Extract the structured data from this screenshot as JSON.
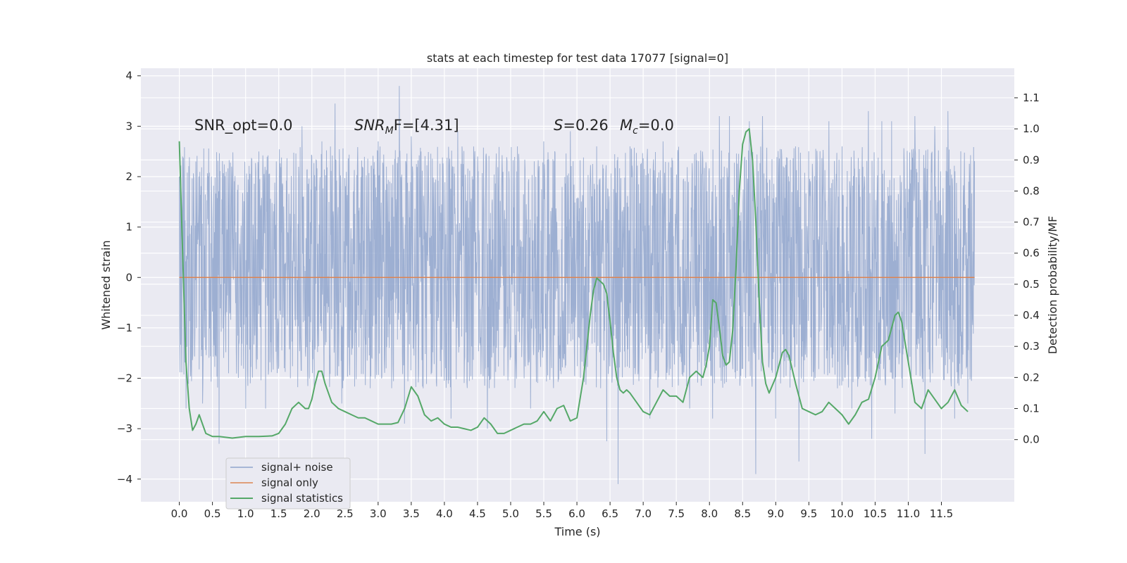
{
  "chart_data": {
    "type": "line",
    "title": "stats at each timestep for test data 17077 [signal=0]",
    "xlabel": "Time (s)",
    "ylabel_left": "Whitened strain",
    "ylabel_right": "Detection probability/MF",
    "xlim": [
      -0.58,
      12.6
    ],
    "ylim_left": [
      -4.45,
      4.15
    ],
    "ylim_right": [
      -0.2,
      1.195
    ],
    "x_ticks": [
      0.0,
      0.5,
      1.0,
      1.5,
      2.0,
      2.5,
      3.0,
      3.5,
      4.0,
      4.5,
      5.0,
      5.5,
      6.0,
      6.5,
      7.0,
      7.5,
      8.0,
      8.5,
      9.0,
      9.5,
      10.0,
      10.5,
      11.0,
      11.5
    ],
    "x_tick_labels": [
      "0.0",
      "0.5",
      "1.0",
      "1.5",
      "2.0",
      "2.5",
      "3.0",
      "3.5",
      "4.0",
      "4.5",
      "5.0",
      "5.5",
      "6.0",
      "6.5",
      "7.0",
      "7.5",
      "8.0",
      "8.5",
      "9.0",
      "9.5",
      "10.0",
      "10.5",
      "11.0",
      "11.5"
    ],
    "y_left_ticks": [
      -4,
      -3,
      -2,
      -1,
      0,
      1,
      2,
      3,
      4
    ],
    "y_left_tick_labels": [
      "−4",
      "−3",
      "−2",
      "−1",
      "0",
      "1",
      "2",
      "3",
      "4"
    ],
    "y_right_ticks": [
      0.0,
      0.1,
      0.2,
      0.3,
      0.4,
      0.5,
      0.6,
      0.7,
      0.8,
      0.9,
      1.0,
      1.1
    ],
    "y_right_tick_labels": [
      "0.0",
      "0.1",
      "0.2",
      "0.3",
      "0.4",
      "0.5",
      "0.6",
      "0.7",
      "0.8",
      "0.9",
      "1.0",
      "1.1"
    ],
    "grid": true,
    "legend_position": "lower-left",
    "legend": [
      "signal+ noise",
      "signal only",
      "signal statistics"
    ],
    "annotations": {
      "snr_opt": "SNR_opt=0.0",
      "snr_mf_base": "SNR",
      "snr_mf_sub": "M",
      "snr_mf_tail": "F=[4.31]",
      "s_symbol": "S",
      "s_value": "=0.26",
      "mc_base": "M",
      "mc_sub": "c",
      "mc_value": "=0.0"
    },
    "series": [
      {
        "name": "signal+ noise",
        "axis": "left",
        "color": "#8fa4cc",
        "x_range": [
          0.0,
          12.0
        ],
        "band_typical": [
          -1.3,
          1.7
        ],
        "peaks_up": [
          [
            0.05,
            2.4
          ],
          [
            0.25,
            2.3
          ],
          [
            0.6,
            2.6
          ],
          [
            1.2,
            2.5
          ],
          [
            1.85,
            3.0
          ],
          [
            2.0,
            2.4
          ],
          [
            2.15,
            2.7
          ],
          [
            2.35,
            3.45
          ],
          [
            2.45,
            2.6
          ],
          [
            3.0,
            2.7
          ],
          [
            3.32,
            3.8
          ],
          [
            3.5,
            2.8
          ],
          [
            4.2,
            2.9
          ],
          [
            4.5,
            2.4
          ],
          [
            5.1,
            2.6
          ],
          [
            5.5,
            2.7
          ],
          [
            5.9,
            2.9
          ],
          [
            6.3,
            2.6
          ],
          [
            6.8,
            2.6
          ],
          [
            7.3,
            2.7
          ],
          [
            7.7,
            3.0
          ],
          [
            8.15,
            3.2
          ],
          [
            8.3,
            3.2
          ],
          [
            8.6,
            3.1
          ],
          [
            8.8,
            3.2
          ],
          [
            9.3,
            2.6
          ],
          [
            9.8,
            3.1
          ],
          [
            10.0,
            2.6
          ],
          [
            10.4,
            3.3
          ],
          [
            10.6,
            3.1
          ],
          [
            10.75,
            3.1
          ],
          [
            11.1,
            3.2
          ],
          [
            11.4,
            3.0
          ],
          [
            11.6,
            3.3
          ],
          [
            11.9,
            2.8
          ]
        ],
        "peaks_down": [
          [
            0.1,
            -2.6
          ],
          [
            0.35,
            -2.5
          ],
          [
            0.6,
            -3.3
          ],
          [
            1.0,
            -2.6
          ],
          [
            1.3,
            -2.6
          ],
          [
            2.45,
            -2.5
          ],
          [
            3.4,
            -2.9
          ],
          [
            4.1,
            -2.8
          ],
          [
            4.65,
            -3.0
          ],
          [
            5.3,
            -2.6
          ],
          [
            6.45,
            -3.25
          ],
          [
            6.62,
            -4.1
          ],
          [
            7.1,
            -2.8
          ],
          [
            7.7,
            -2.6
          ],
          [
            8.05,
            -2.8
          ],
          [
            8.7,
            -3.9
          ],
          [
            9.0,
            -2.8
          ],
          [
            9.35,
            -3.65
          ],
          [
            10.15,
            -2.6
          ],
          [
            10.45,
            -3.2
          ],
          [
            10.8,
            -2.7
          ],
          [
            11.25,
            -3.5
          ],
          [
            11.7,
            -2.8
          ],
          [
            11.9,
            -2.5
          ]
        ]
      },
      {
        "name": "signal only",
        "axis": "left",
        "color": "#dd8452",
        "x": [
          0.0,
          12.0
        ],
        "y": [
          0.0,
          0.0
        ]
      },
      {
        "name": "signal statistics",
        "axis": "right",
        "color": "#55a868",
        "x": [
          0.0,
          0.05,
          0.1,
          0.15,
          0.2,
          0.25,
          0.3,
          0.35,
          0.4,
          0.5,
          0.6,
          0.8,
          1.0,
          1.2,
          1.4,
          1.5,
          1.6,
          1.7,
          1.8,
          1.85,
          1.9,
          1.95,
          2.0,
          2.05,
          2.1,
          2.15,
          2.2,
          2.3,
          2.4,
          2.5,
          2.6,
          2.7,
          2.8,
          2.9,
          3.0,
          3.2,
          3.3,
          3.4,
          3.5,
          3.6,
          3.7,
          3.8,
          3.9,
          4.0,
          4.1,
          4.2,
          4.4,
          4.5,
          4.6,
          4.7,
          4.8,
          4.9,
          5.0,
          5.1,
          5.2,
          5.3,
          5.4,
          5.5,
          5.6,
          5.7,
          5.8,
          5.9,
          6.0,
          6.1,
          6.2,
          6.25,
          6.3,
          6.35,
          6.4,
          6.45,
          6.5,
          6.55,
          6.6,
          6.65,
          6.7,
          6.75,
          6.8,
          6.9,
          7.0,
          7.1,
          7.2,
          7.3,
          7.4,
          7.5,
          7.6,
          7.7,
          7.8,
          7.9,
          7.95,
          8.0,
          8.05,
          8.1,
          8.15,
          8.2,
          8.25,
          8.3,
          8.35,
          8.4,
          8.45,
          8.5,
          8.55,
          8.6,
          8.65,
          8.7,
          8.75,
          8.8,
          8.85,
          8.9,
          9.0,
          9.1,
          9.15,
          9.2,
          9.3,
          9.4,
          9.5,
          9.6,
          9.7,
          9.8,
          9.9,
          10.0,
          10.1,
          10.2,
          10.3,
          10.4,
          10.5,
          10.6,
          10.7,
          10.8,
          10.85,
          10.9,
          11.0,
          11.1,
          11.2,
          11.3,
          11.4,
          11.5,
          11.6,
          11.7,
          11.8,
          11.9
        ],
        "y": [
          0.96,
          0.6,
          0.25,
          0.1,
          0.03,
          0.05,
          0.08,
          0.05,
          0.02,
          0.01,
          0.01,
          0.005,
          0.01,
          0.01,
          0.012,
          0.02,
          0.05,
          0.1,
          0.12,
          0.11,
          0.1,
          0.1,
          0.13,
          0.18,
          0.22,
          0.22,
          0.18,
          0.12,
          0.1,
          0.09,
          0.08,
          0.07,
          0.07,
          0.06,
          0.05,
          0.05,
          0.055,
          0.1,
          0.17,
          0.14,
          0.08,
          0.06,
          0.07,
          0.05,
          0.04,
          0.04,
          0.03,
          0.04,
          0.07,
          0.05,
          0.02,
          0.02,
          0.03,
          0.04,
          0.05,
          0.05,
          0.06,
          0.09,
          0.06,
          0.1,
          0.11,
          0.06,
          0.07,
          0.2,
          0.4,
          0.48,
          0.52,
          0.51,
          0.5,
          0.47,
          0.38,
          0.28,
          0.2,
          0.16,
          0.15,
          0.16,
          0.15,
          0.12,
          0.09,
          0.08,
          0.12,
          0.16,
          0.14,
          0.14,
          0.12,
          0.2,
          0.22,
          0.2,
          0.24,
          0.3,
          0.45,
          0.44,
          0.36,
          0.27,
          0.24,
          0.25,
          0.35,
          0.55,
          0.8,
          0.95,
          0.99,
          1.0,
          0.9,
          0.7,
          0.45,
          0.25,
          0.18,
          0.15,
          0.2,
          0.28,
          0.29,
          0.27,
          0.18,
          0.1,
          0.09,
          0.08,
          0.09,
          0.12,
          0.1,
          0.08,
          0.05,
          0.08,
          0.12,
          0.13,
          0.2,
          0.3,
          0.32,
          0.4,
          0.41,
          0.38,
          0.25,
          0.12,
          0.1,
          0.16,
          0.13,
          0.1,
          0.12,
          0.16,
          0.11,
          0.09
        ]
      }
    ]
  }
}
